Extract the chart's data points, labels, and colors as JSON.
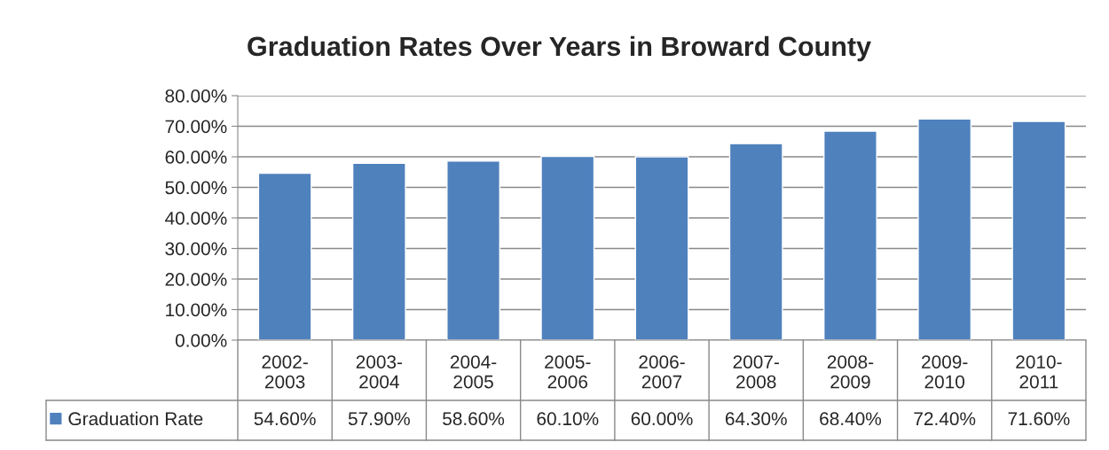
{
  "chart_data": {
    "type": "bar",
    "title": "Graduation Rates Over Years in Broward County",
    "categories": [
      "2002-2003",
      "2003-2004",
      "2004-2005",
      "2005-2006",
      "2006-2007",
      "2007-2008",
      "2008-2009",
      "2009-2010",
      "2010-2011"
    ],
    "series": [
      {
        "name": "Graduation Rate",
        "color": "#4f81bd",
        "values": [
          54.6,
          57.9,
          58.6,
          60.1,
          60.0,
          64.3,
          68.4,
          72.4,
          71.6
        ],
        "value_labels": [
          "54.60%",
          "57.90%",
          "58.60%",
          "60.10%",
          "60.00%",
          "64.30%",
          "68.40%",
          "72.40%",
          "71.60%"
        ]
      }
    ],
    "ylim": [
      0,
      80
    ],
    "yticks": [
      {
        "value": 0,
        "label": "0.00%"
      },
      {
        "value": 10,
        "label": "10.00%"
      },
      {
        "value": 20,
        "label": "20.00%"
      },
      {
        "value": 30,
        "label": "30.00%"
      },
      {
        "value": 40,
        "label": "40.00%"
      },
      {
        "value": 50,
        "label": "50.00%"
      },
      {
        "value": 60,
        "label": "60.00%"
      },
      {
        "value": 70,
        "label": "70.00%"
      },
      {
        "value": 80,
        "label": "80.00%"
      }
    ],
    "grid": "y",
    "legend": "bottom"
  }
}
